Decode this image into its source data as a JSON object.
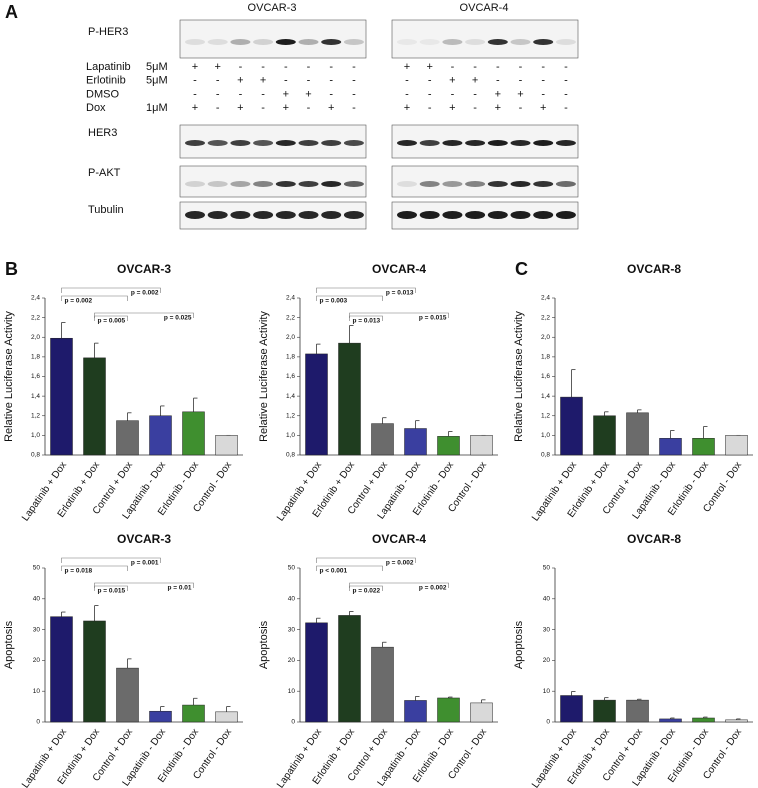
{
  "blot": {
    "panel": "A",
    "cell_lines": [
      "OVCAR-3",
      "OVCAR-4"
    ],
    "proteins": [
      "P-HER3",
      "HER3",
      "P-AKT",
      "Tubulin"
    ],
    "conditions": [
      {
        "name": "Lapatinib",
        "dose": "5μM"
      },
      {
        "name": "Erlotinib",
        "dose": "5μM"
      },
      {
        "name": "DMSO"
      },
      {
        "name": "Dox",
        "dose": "1μM"
      }
    ],
    "signs": [
      [
        [
          "+",
          "+",
          "-",
          "-",
          "-",
          "-",
          "-",
          "-"
        ],
        [
          "-",
          "-",
          "+",
          "+",
          "-",
          "-",
          "-",
          "-"
        ],
        [
          "-",
          "-",
          "-",
          "-",
          "+",
          "+",
          "-",
          "-"
        ],
        [
          "+",
          "-",
          "+",
          "-",
          "+",
          "-",
          "+",
          "-"
        ]
      ],
      [
        [
          "+",
          "+",
          "-",
          "-",
          "-",
          "-",
          "-",
          "-"
        ],
        [
          "-",
          "-",
          "+",
          "+",
          "-",
          "-",
          "-",
          "-"
        ],
        [
          "-",
          "-",
          "-",
          "-",
          "+",
          "+",
          "-",
          "-"
        ],
        [
          "+",
          "-",
          "+",
          "-",
          "+",
          "-",
          "+",
          "-"
        ]
      ]
    ]
  },
  "chart_data": [
    {
      "type": "bar",
      "panel": "B",
      "title": "OVCAR-3",
      "ylabel": "Relative Luciferase Activity",
      "categories": [
        "Lapatinib + Dox",
        "Erlotinib + Dox",
        "Control + Dox",
        "Lapatinib - Dox",
        "Erlotinib - Dox",
        "Control - Dox"
      ],
      "values": [
        1.99,
        1.79,
        1.15,
        1.2,
        1.24,
        1.0
      ],
      "errors": [
        0.16,
        0.15,
        0.08,
        0.1,
        0.14,
        0
      ],
      "colors": [
        "#1e1a6b",
        "#1f3d1f",
        "#6b6b6b",
        "#3a3fa0",
        "#3f8f2f",
        "#d9d9d9"
      ],
      "ylim": [
        0.8,
        2.4
      ],
      "yticks": [
        {
          "value": 0.8,
          "label": "0,8"
        },
        {
          "value": 1.0,
          "label": "1,0"
        },
        {
          "value": 1.2,
          "label": "1,2"
        },
        {
          "value": 1.4,
          "label": "1,4"
        },
        {
          "value": 1.6,
          "label": "1,6"
        },
        {
          "value": 1.8,
          "label": "1,8"
        },
        {
          "value": 2.0,
          "label": "2,0"
        },
        {
          "value": 2.2,
          "label": "2,2"
        },
        {
          "value": 2.4,
          "label": "2,4"
        }
      ],
      "comparisons": [
        {
          "label": "p = 0.002",
          "pair": [
            0,
            3
          ]
        },
        {
          "label": "p = 0.002",
          "pair": [
            0,
            2
          ]
        },
        {
          "label": "p = 0.025",
          "pair": [
            1,
            4
          ]
        },
        {
          "label": "p = 0.005",
          "pair": [
            1,
            2
          ]
        }
      ]
    },
    {
      "type": "bar",
      "title": "OVCAR-4",
      "ylabel": "Relative Luciferase Activity",
      "categories": [
        "Lapatinib + Dox",
        "Erlotinib + Dox",
        "Control + Dox",
        "Lapatinib - Dox",
        "Erlotinib - Dox",
        "Control - Dox"
      ],
      "values": [
        1.83,
        1.94,
        1.12,
        1.07,
        0.99,
        1.0
      ],
      "errors": [
        0.1,
        0.18,
        0.06,
        0.08,
        0.05,
        0
      ],
      "colors": [
        "#1e1a6b",
        "#1f3d1f",
        "#6b6b6b",
        "#3a3fa0",
        "#3f8f2f",
        "#d9d9d9"
      ],
      "ylim": [
        0.8,
        2.4
      ],
      "yticks": [
        {
          "value": 0.8,
          "label": "0,8"
        },
        {
          "value": 1.0,
          "label": "1,0"
        },
        {
          "value": 1.2,
          "label": "1,2"
        },
        {
          "value": 1.4,
          "label": "1,4"
        },
        {
          "value": 1.6,
          "label": "1,6"
        },
        {
          "value": 1.8,
          "label": "1,8"
        },
        {
          "value": 2.0,
          "label": "2,0"
        },
        {
          "value": 2.2,
          "label": "2,2"
        },
        {
          "value": 2.4,
          "label": "2,4"
        }
      ],
      "comparisons": [
        {
          "label": "p = 0.013",
          "pair": [
            0,
            3
          ]
        },
        {
          "label": "p = 0.003",
          "pair": [
            0,
            2
          ]
        },
        {
          "label": "p = 0.015",
          "pair": [
            1,
            4
          ]
        },
        {
          "label": "p = 0.013",
          "pair": [
            1,
            2
          ]
        }
      ]
    },
    {
      "type": "bar",
      "panel": "C",
      "title": "OVCAR-8",
      "ylabel": "Relative Luciferase Activity",
      "categories": [
        "Lapatinib + Dox",
        "Erlotinib + Dox",
        "Control + Dox",
        "Lapatinib - Dox",
        "Erlotinib - Dox",
        "Control - Dox"
      ],
      "values": [
        1.39,
        1.2,
        1.23,
        0.97,
        0.97,
        1.0
      ],
      "errors": [
        0.28,
        0.04,
        0.03,
        0.08,
        0.12,
        0
      ],
      "colors": [
        "#1e1a6b",
        "#1f3d1f",
        "#6b6b6b",
        "#3a3fa0",
        "#3f8f2f",
        "#d9d9d9"
      ],
      "ylim": [
        0.8,
        2.4
      ],
      "yticks": [
        {
          "value": 0.8,
          "label": "0,8"
        },
        {
          "value": 1.0,
          "label": "1,0"
        },
        {
          "value": 1.2,
          "label": "1,2"
        },
        {
          "value": 1.4,
          "label": "1,4"
        },
        {
          "value": 1.6,
          "label": "1,6"
        },
        {
          "value": 1.8,
          "label": "1,8"
        },
        {
          "value": 2.0,
          "label": "2,0"
        },
        {
          "value": 2.2,
          "label": "2,2"
        },
        {
          "value": 2.4,
          "label": "2,4"
        }
      ]
    },
    {
      "type": "bar",
      "title": "OVCAR-3",
      "ylabel": "Apoptosis",
      "categories": [
        "Lapatinib + Dox",
        "Erlotinib + Dox",
        "Control + Dox",
        "Lapatinib - Dox",
        "Erlotinib - Dox",
        "Control - Dox"
      ],
      "values": [
        34.2,
        32.8,
        17.5,
        3.5,
        5.5,
        3.3
      ],
      "errors": [
        1.5,
        5,
        3,
        1.5,
        2.2,
        1.7
      ],
      "colors": [
        "#1e1a6b",
        "#1f3d1f",
        "#6b6b6b",
        "#3a3fa0",
        "#3f8f2f",
        "#d9d9d9"
      ],
      "ylim": [
        0,
        50
      ],
      "yticks": [
        0,
        10,
        20,
        30,
        40,
        50
      ],
      "comparisons": [
        {
          "label": "p = 0.001",
          "pair": [
            0,
            3
          ]
        },
        {
          "label": "p = 0.018",
          "pair": [
            0,
            2
          ]
        },
        {
          "label": "p = 0.01",
          "pair": [
            1,
            4
          ]
        },
        {
          "label": "p = 0.015",
          "pair": [
            1,
            2
          ]
        }
      ]
    },
    {
      "type": "bar",
      "title": "OVCAR-4",
      "ylabel": "Apoptosis",
      "categories": [
        "Lapatinib + Dox",
        "Erlotinib + Dox",
        "Control + Dox",
        "Lapatinib - Dox",
        "Erlotinib - Dox",
        "Control - Dox"
      ],
      "values": [
        32.2,
        34.6,
        24.3,
        7,
        7.8,
        6.2
      ],
      "errors": [
        1.5,
        1.3,
        1.6,
        1.3,
        0.3,
        1
      ],
      "colors": [
        "#1e1a6b",
        "#1f3d1f",
        "#6b6b6b",
        "#3a3fa0",
        "#3f8f2f",
        "#d9d9d9"
      ],
      "ylim": [
        0,
        50
      ],
      "yticks": [
        0,
        10,
        20,
        30,
        40,
        50
      ],
      "comparisons": [
        {
          "label": "p = 0.002",
          "pair": [
            0,
            3
          ]
        },
        {
          "label": "p < 0.001",
          "pair": [
            0,
            2
          ]
        },
        {
          "label": "p = 0.002",
          "pair": [
            1,
            4
          ]
        },
        {
          "label": "p = 0.022",
          "pair": [
            1,
            2
          ]
        }
      ]
    },
    {
      "type": "bar",
      "title": "OVCAR-8",
      "ylabel": "Apoptosis",
      "categories": [
        "Lapatinib + Dox",
        "Erlotinib + Dox",
        "Control + Dox",
        "Lapatinib - Dox",
        "Erlotinib - Dox",
        "Control - Dox"
      ],
      "values": [
        8.6,
        7.1,
        7.1,
        1.0,
        1.3,
        0.7
      ],
      "errors": [
        1.3,
        0.8,
        0.3,
        0.3,
        0.3,
        0.3
      ],
      "colors": [
        "#1e1a6b",
        "#1f3d1f",
        "#6b6b6b",
        "#3a3fa0",
        "#3f8f2f",
        "#d9d9d9"
      ],
      "ylim": [
        0,
        50
      ],
      "yticks": [
        0,
        10,
        20,
        30,
        40,
        50
      ]
    }
  ]
}
